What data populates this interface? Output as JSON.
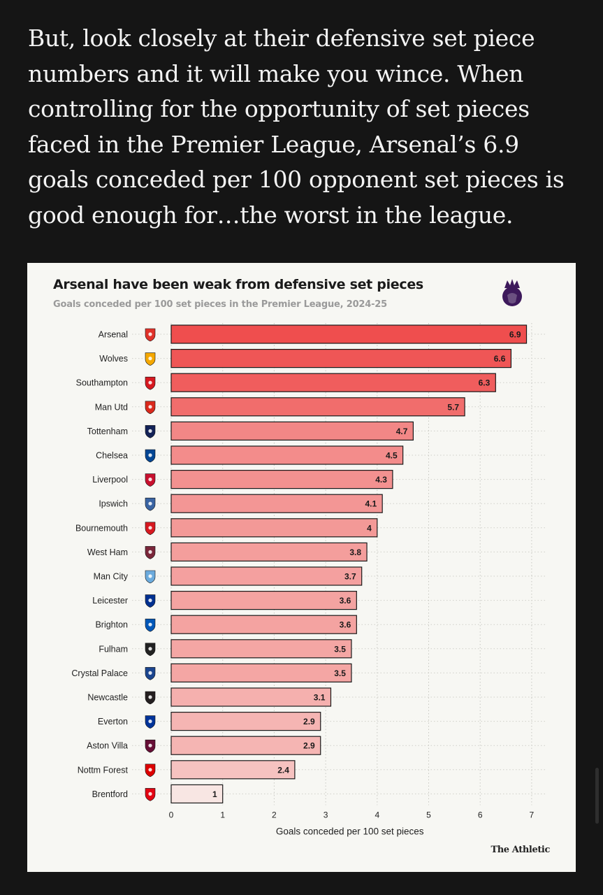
{
  "article": {
    "paragraph": "But, look closely at their defensive set piece numbers and it will make you wince. When controlling for the opportunity of set pieces faced in the Premier League, Arsenal’s 6.9 goals conceded per 100 opponent set pieces is good enough for…the worst in the league."
  },
  "chart": {
    "title": "Arsenal have been weak from defensive set pieces",
    "subtitle": "Goals conceded per 100 set pieces in the Premier League, 2024-25",
    "brand": "The Athletic",
    "logo_icon": "premier-league-lion-icon"
  },
  "chart_data": {
    "type": "bar",
    "orientation": "horizontal",
    "title": "Arsenal have been weak from defensive set pieces",
    "subtitle": "Goals conceded per 100 set pieces in the Premier League, 2024-25",
    "xlabel": "Goals conceded per 100 set pieces",
    "ylabel": "",
    "xlim": [
      0,
      7
    ],
    "xticks": [
      "0",
      "1",
      "2",
      "3",
      "4",
      "5",
      "6",
      "7"
    ],
    "grid": true,
    "categories": [
      "Arsenal",
      "Wolves",
      "Southampton",
      "Man Utd",
      "Tottenham",
      "Chelsea",
      "Liverpool",
      "Ipswich",
      "Bournemouth",
      "West Ham",
      "Man City",
      "Leicester",
      "Brighton",
      "Fulham",
      "Crystal Palace",
      "Newcastle",
      "Everton",
      "Aston Villa",
      "Nottm Forest",
      "Brentford"
    ],
    "values": [
      6.9,
      6.6,
      6.3,
      5.7,
      4.7,
      4.5,
      4.3,
      4.1,
      4,
      3.8,
      3.7,
      3.6,
      3.6,
      3.5,
      3.5,
      3.1,
      2.9,
      2.9,
      2.4,
      1
    ],
    "value_labels": [
      "6.9",
      "6.6",
      "6.3",
      "5.7",
      "4.7",
      "4.5",
      "4.3",
      "4.1",
      "4",
      "3.8",
      "3.7",
      "3.6",
      "3.6",
      "3.5",
      "3.5",
      "3.1",
      "2.9",
      "2.9",
      "2.4",
      "1"
    ],
    "color_scale": [
      "#f8e6e3",
      "#ef4e4e"
    ],
    "crest_colors": [
      "#e0322a",
      "#f5a800",
      "#d71920",
      "#da291c",
      "#132257",
      "#034694",
      "#c8102e",
      "#3a64a3",
      "#d71920",
      "#7a263a",
      "#6cabdd",
      "#003090",
      "#0057b8",
      "#222222",
      "#1b458f",
      "#241f20",
      "#003399",
      "#670e36",
      "#dd0000",
      "#e30613"
    ]
  }
}
